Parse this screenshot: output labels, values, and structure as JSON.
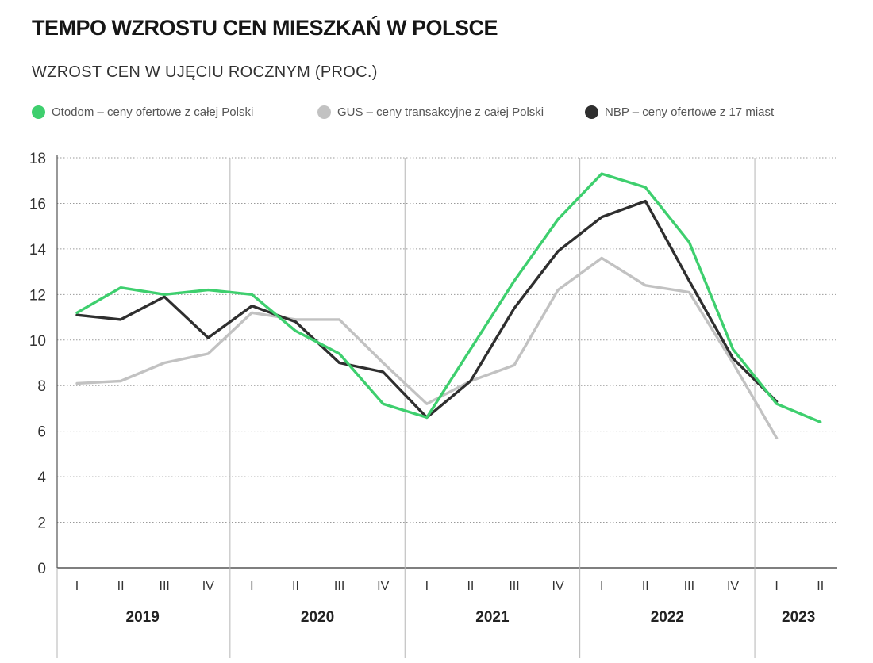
{
  "header": {
    "title": "TEMPO WZROSTU CEN MIESZKAŃ W POLSCE",
    "subtitle": "WZROST CEN W UJĘCIU ROCZNYM (PROC.)"
  },
  "chart_data": {
    "type": "line",
    "title": "TEMPO WZROSTU CEN MIESZKAŃ W POLSCE",
    "subtitle": "WZROST CEN W UJĘCIU ROCZNYM (PROC.)",
    "ylim": [
      0,
      18
    ],
    "y_ticks": [
      0,
      2,
      4,
      6,
      8,
      10,
      12,
      14,
      16,
      18
    ],
    "grid": "horizontal dotted",
    "legend_position": "top",
    "categories": [
      "I",
      "II",
      "III",
      "IV",
      "I",
      "II",
      "III",
      "IV",
      "I",
      "II",
      "III",
      "IV",
      "I",
      "II",
      "III",
      "IV",
      "I",
      "II"
    ],
    "year_groups": [
      {
        "label": "2019",
        "quarters": 4
      },
      {
        "label": "2020",
        "quarters": 4
      },
      {
        "label": "2021",
        "quarters": 4
      },
      {
        "label": "2022",
        "quarters": 4
      },
      {
        "label": "2023",
        "quarters": 2
      }
    ],
    "series": [
      {
        "name": "Otodom – ceny ofertowe z całej Polski",
        "color": "#3ecf6e",
        "values": [
          11.2,
          12.3,
          12.0,
          12.2,
          12.0,
          10.4,
          9.4,
          7.2,
          6.6,
          9.6,
          12.6,
          15.3,
          17.3,
          16.7,
          14.3,
          9.6,
          7.2,
          6.4
        ]
      },
      {
        "name": "GUS – ceny transakcyjne z całej Polski",
        "color": "#c2c2c2",
        "values": [
          8.1,
          8.2,
          9.0,
          9.4,
          11.2,
          10.9,
          10.9,
          9.0,
          7.2,
          8.2,
          8.9,
          12.2,
          13.6,
          12.4,
          12.1,
          9.0,
          5.7,
          null
        ]
      },
      {
        "name": "NBP – ceny ofertowe z 17 miast",
        "color": "#2f2f2f",
        "values": [
          11.1,
          10.9,
          11.9,
          10.1,
          11.5,
          10.8,
          9.0,
          8.6,
          6.6,
          8.2,
          11.4,
          13.9,
          15.4,
          16.1,
          12.6,
          9.2,
          7.3,
          null
        ]
      }
    ]
  }
}
